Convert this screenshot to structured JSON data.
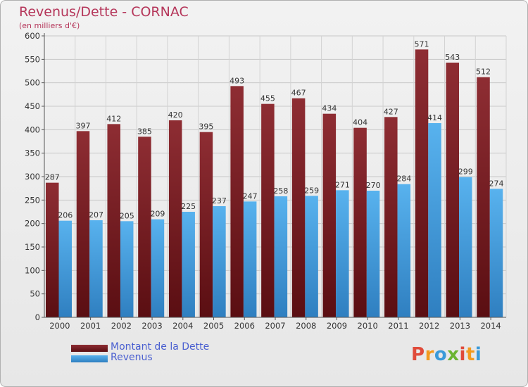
{
  "header": {
    "title": "Revenus/Dette - CORNAC",
    "subtitle": "(en milliers d'€)"
  },
  "chart_data": {
    "type": "bar",
    "categories": [
      "2000",
      "2001",
      "2002",
      "2003",
      "2004",
      "2005",
      "2006",
      "2007",
      "2008",
      "2009",
      "2010",
      "2011",
      "2012",
      "2013",
      "2014"
    ],
    "series": [
      {
        "name": "Montant de la Dette",
        "color": "#7a1f24",
        "values": [
          287,
          397,
          412,
          385,
          420,
          395,
          493,
          455,
          467,
          434,
          404,
          427,
          571,
          543,
          512
        ]
      },
      {
        "name": "Revenus",
        "color": "#4aa3e3",
        "values": [
          206,
          207,
          205,
          209,
          225,
          237,
          247,
          258,
          259,
          271,
          270,
          284,
          414,
          299,
          274
        ]
      }
    ],
    "title": "Revenus/Dette - CORNAC",
    "subtitle": "(en milliers d'€)",
    "xlabel": "",
    "ylabel": "",
    "ylim": [
      0,
      600
    ],
    "ytick_step": 50,
    "grid": true,
    "legend_position": "bottom-left"
  },
  "legend": {
    "items": [
      {
        "label": "Montant de la Dette",
        "color": "#7a1f24"
      },
      {
        "label": "Revenus",
        "color": "#4aa3e3"
      }
    ]
  },
  "brand": {
    "text": "Proxiti",
    "letter_colors": [
      "#e04b3a",
      "#f39a1e",
      "#3a9ad9",
      "#6bb431",
      "#e04b3a",
      "#f39a1e",
      "#3a9ad9"
    ]
  }
}
